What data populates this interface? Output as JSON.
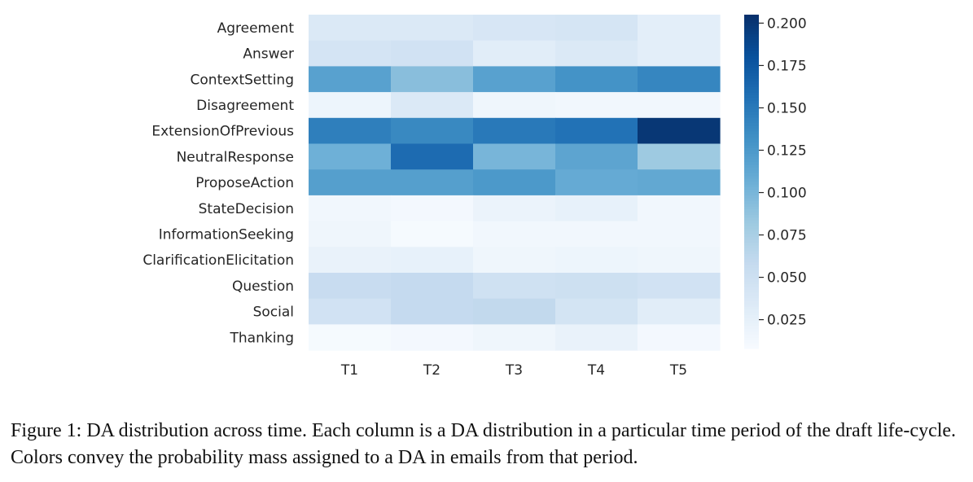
{
  "chart_data": {
    "type": "heatmap",
    "x_labels": [
      "T1",
      "T2",
      "T3",
      "T4",
      "T5"
    ],
    "y_labels": [
      "Agreement",
      "Answer",
      "ContextSetting",
      "Disagreement",
      "ExtensionOfPrevious",
      "NeutralResponse",
      "ProposeAction",
      "StateDecision",
      "InformationSeeking",
      "ClarificationElicitation",
      "Question",
      "Social",
      "Thanking"
    ],
    "values": [
      [
        0.036,
        0.036,
        0.04,
        0.042,
        0.028
      ],
      [
        0.043,
        0.046,
        0.03,
        0.036,
        0.028
      ],
      [
        0.118,
        0.092,
        0.118,
        0.13,
        0.14
      ],
      [
        0.018,
        0.036,
        0.016,
        0.014,
        0.014
      ],
      [
        0.145,
        0.138,
        0.15,
        0.155,
        0.2
      ],
      [
        0.105,
        0.16,
        0.1,
        0.115,
        0.082
      ],
      [
        0.12,
        0.12,
        0.125,
        0.11,
        0.112
      ],
      [
        0.014,
        0.012,
        0.02,
        0.024,
        0.014
      ],
      [
        0.016,
        0.01,
        0.014,
        0.014,
        0.014
      ],
      [
        0.022,
        0.024,
        0.016,
        0.018,
        0.016
      ],
      [
        0.055,
        0.058,
        0.048,
        0.05,
        0.046
      ],
      [
        0.046,
        0.058,
        0.06,
        0.044,
        0.03
      ],
      [
        0.01,
        0.012,
        0.016,
        0.022,
        0.012
      ]
    ],
    "colorbar": {
      "min": 0.008,
      "max": 0.205,
      "ticks": [
        0.2,
        0.175,
        0.15,
        0.125,
        0.1,
        0.075,
        0.05,
        0.025
      ],
      "tick_labels": [
        "0.200",
        "0.175",
        "0.150",
        "0.125",
        "0.100",
        "0.075",
        "0.050",
        "0.025"
      ],
      "colormap": "Blues"
    }
  },
  "caption": "Figure 1: DA distribution across time. Each column is a DA distribution in a particular time period of the draft life-cycle. Colors convey the probability mass assigned to a DA in emails from that period."
}
